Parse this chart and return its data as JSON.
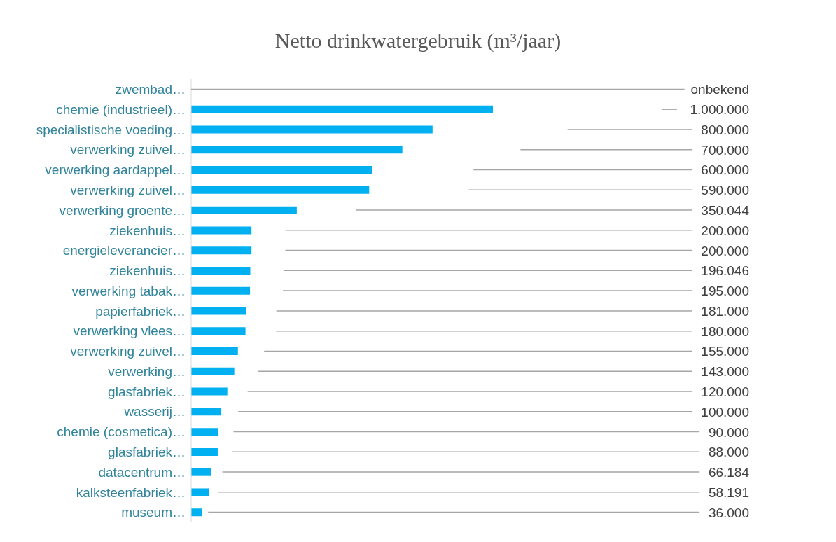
{
  "chart_data": {
    "type": "bar",
    "orientation": "horizontal",
    "title": "Netto drinkwatergebruik (m³/jaar)",
    "categories": [
      "zwembad…",
      "chemie (industrieel)…",
      "specialistische voeding…",
      "verwerking zuivel…",
      "verwerking aardappel…",
      "verwerking zuivel…",
      "verwerking groente…",
      "ziekenhuis…",
      "energieleverancier…",
      "ziekenhuis…",
      "verwerking tabak…",
      "papierfabriek…",
      "verwerking vlees…",
      "verwerking zuivel…",
      "verwerking…",
      "glasfabriek…",
      "wasserij…",
      "chemie (cosmetica)…",
      "glasfabriek…",
      "datacentrum…",
      "kalksteenfabriek…",
      "museum…"
    ],
    "values": [
      null,
      1000000,
      800000,
      700000,
      600000,
      590000,
      350044,
      200000,
      200000,
      196046,
      195000,
      181000,
      180000,
      155000,
      143000,
      120000,
      100000,
      90000,
      88000,
      66184,
      58191,
      36000
    ],
    "value_labels": [
      "onbekend",
      "1.000.000",
      "800.000",
      "700.000",
      "600.000",
      "590.000",
      "350.044",
      "200.000",
      "200.000",
      "196.046",
      "195.000",
      "181.000",
      "180.000",
      "155.000",
      "143.000",
      "120.000",
      "100.000",
      "90.000",
      "88.000",
      "66.184",
      "58.191",
      "36.000"
    ],
    "color": "#00b0f0"
  }
}
